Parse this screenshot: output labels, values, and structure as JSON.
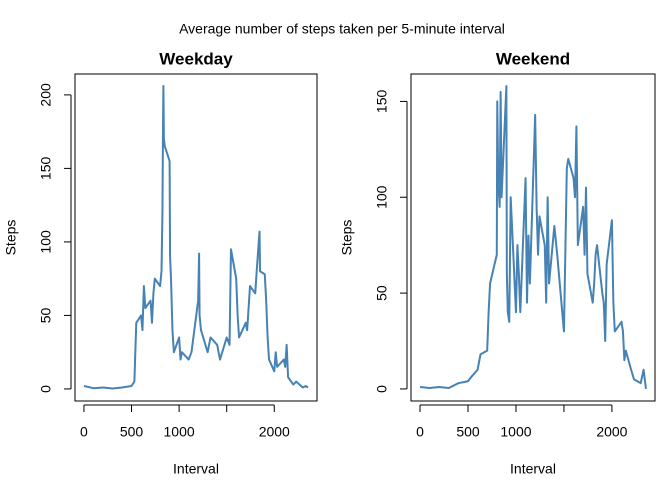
{
  "title": "Average number of steps taken per 5-minute interval",
  "chart_data": [
    {
      "type": "line",
      "title": "Weekday",
      "x_label": "Interval",
      "y_label": "Steps",
      "color": "#4682b4",
      "x": [
        0,
        100,
        200,
        300,
        400,
        500,
        530,
        550,
        600,
        615,
        630,
        645,
        700,
        715,
        730,
        745,
        800,
        815,
        825,
        830,
        835,
        840,
        850,
        900,
        905,
        915,
        930,
        945,
        1000,
        1015,
        1030,
        1100,
        1130,
        1200,
        1210,
        1215,
        1230,
        1300,
        1330,
        1400,
        1430,
        1500,
        1530,
        1545,
        1600,
        1615,
        1630,
        1700,
        1715,
        1745,
        1800,
        1815,
        1845,
        1850,
        1900,
        1915,
        1930,
        1945,
        2000,
        2015,
        2030,
        2100,
        2115,
        2130,
        2145,
        2200,
        2230,
        2300,
        2330,
        2355
      ],
      "values": [
        2,
        0.5,
        1,
        0.3,
        1,
        2,
        5,
        45,
        50,
        40,
        70,
        55,
        60,
        45,
        65,
        75,
        70,
        80,
        120,
        170,
        206,
        170,
        165,
        155,
        90,
        75,
        40,
        25,
        35,
        20,
        25,
        20,
        25,
        60,
        92,
        50,
        40,
        25,
        35,
        30,
        20,
        35,
        30,
        95,
        75,
        50,
        35,
        45,
        40,
        70,
        65,
        80,
        107,
        80,
        78,
        60,
        35,
        20,
        12,
        25,
        15,
        20,
        15,
        30,
        8,
        3,
        5,
        1,
        2,
        1
      ],
      "xlim": [
        -94,
        2449
      ],
      "xticks": [
        0,
        500,
        1000,
        {
          "value": 1500,
          "label": null
        },
        2000
      ],
      "ylim": [
        -8.2,
        214.2
      ],
      "yticks": [
        0,
        50,
        100,
        150,
        200
      ]
    },
    {
      "type": "line",
      "title": "Weekend",
      "x_label": "Interval",
      "y_label": "Steps",
      "color": "#4682b4",
      "x": [
        0,
        100,
        200,
        300,
        400,
        500,
        530,
        600,
        630,
        700,
        715,
        730,
        800,
        805,
        815,
        830,
        840,
        850,
        900,
        905,
        915,
        930,
        945,
        1000,
        1015,
        1030,
        1045,
        1100,
        1115,
        1130,
        1145,
        1200,
        1215,
        1230,
        1245,
        1300,
        1315,
        1330,
        1345,
        1400,
        1430,
        1500,
        1530,
        1545,
        1600,
        1615,
        1630,
        1645,
        1700,
        1715,
        1730,
        1745,
        1800,
        1815,
        1830,
        1845,
        1900,
        1915,
        1930,
        1945,
        2000,
        2015,
        2030,
        2100,
        2115,
        2130,
        2145,
        2200,
        2230,
        2300,
        2330,
        2355
      ],
      "values": [
        1,
        0.5,
        1,
        0.5,
        3,
        4,
        6,
        10,
        18,
        20,
        40,
        55,
        70,
        150,
        110,
        95,
        155,
        100,
        158,
        60,
        40,
        35,
        100,
        40,
        75,
        60,
        40,
        110,
        45,
        80,
        55,
        143,
        95,
        70,
        90,
        75,
        45,
        100,
        55,
        85,
        70,
        30,
        115,
        120,
        110,
        100,
        137,
        75,
        95,
        70,
        105,
        60,
        45,
        55,
        70,
        75,
        50,
        45,
        25,
        65,
        88,
        45,
        30,
        35,
        30,
        15,
        20,
        10,
        5,
        3,
        10,
        0
      ],
      "xlim": [
        -94,
        2449
      ],
      "xticks": [
        0,
        500,
        1000,
        {
          "value": 1500,
          "label": null
        },
        2000
      ],
      "ylim": [
        -6.3,
        164.3
      ],
      "yticks": [
        0,
        50,
        100,
        150
      ]
    }
  ]
}
